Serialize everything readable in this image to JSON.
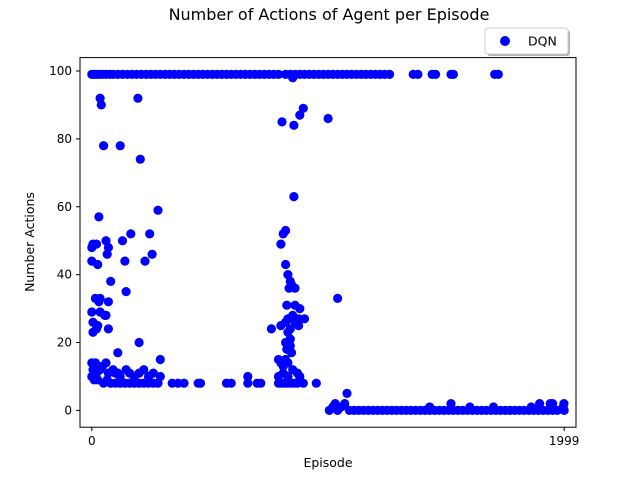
{
  "chart_data": {
    "type": "scatter",
    "title": "Number of Actions of Agent per Episode",
    "xlabel": "Episode",
    "ylabel": "Number Actions",
    "xlim": [
      -50,
      2049
    ],
    "ylim": [
      -4.95,
      103.95
    ],
    "xticks": [
      0,
      1999
    ],
    "xtick_labels": [
      "0",
      "1999"
    ],
    "yticks": [
      0,
      20,
      40,
      60,
      80,
      100
    ],
    "ytick_labels": [
      "0",
      "20",
      "40",
      "60",
      "80",
      "100"
    ],
    "grid": false,
    "legend": {
      "placement": "top-right, above plot",
      "entries": [
        {
          "label": "DQN",
          "color": "#0000ff",
          "marker": "circle"
        }
      ]
    },
    "series": [
      {
        "name": "DQN",
        "color": "#0000ff",
        "marker": "circle",
        "points": [
          [
            0,
            99
          ],
          [
            10,
            99
          ],
          [
            20,
            99
          ],
          [
            30,
            99
          ],
          [
            45,
            99
          ],
          [
            60,
            99
          ],
          [
            75,
            99
          ],
          [
            90,
            99
          ],
          [
            110,
            99
          ],
          [
            130,
            99
          ],
          [
            150,
            99
          ],
          [
            170,
            99
          ],
          [
            190,
            99
          ],
          [
            210,
            99
          ],
          [
            230,
            99
          ],
          [
            250,
            99
          ],
          [
            270,
            99
          ],
          [
            290,
            99
          ],
          [
            310,
            99
          ],
          [
            330,
            99
          ],
          [
            350,
            99
          ],
          [
            370,
            99
          ],
          [
            390,
            99
          ],
          [
            410,
            99
          ],
          [
            430,
            99
          ],
          [
            450,
            99
          ],
          [
            470,
            99
          ],
          [
            490,
            99
          ],
          [
            510,
            99
          ],
          [
            530,
            99
          ],
          [
            550,
            99
          ],
          [
            570,
            99
          ],
          [
            590,
            99
          ],
          [
            610,
            99
          ],
          [
            630,
            99
          ],
          [
            650,
            99
          ],
          [
            670,
            99
          ],
          [
            690,
            99
          ],
          [
            710,
            99
          ],
          [
            730,
            99
          ],
          [
            750,
            99
          ],
          [
            770,
            99
          ],
          [
            790,
            99
          ],
          [
            820,
            99
          ],
          [
            840,
            99
          ],
          [
            860,
            99
          ],
          [
            880,
            99
          ],
          [
            900,
            99
          ],
          [
            920,
            99
          ],
          [
            940,
            99
          ],
          [
            960,
            99
          ],
          [
            980,
            99
          ],
          [
            1000,
            99
          ],
          [
            1020,
            99
          ],
          [
            1040,
            99
          ],
          [
            1060,
            99
          ],
          [
            1080,
            99
          ],
          [
            1100,
            99
          ],
          [
            1120,
            99
          ],
          [
            1140,
            99
          ],
          [
            1160,
            99
          ],
          [
            1180,
            99
          ],
          [
            1200,
            99
          ],
          [
            1220,
            99
          ],
          [
            1240,
            99
          ],
          [
            1260,
            99
          ],
          [
            1360,
            99
          ],
          [
            1380,
            99
          ],
          [
            1440,
            99
          ],
          [
            1455,
            99
          ],
          [
            1520,
            99
          ],
          [
            1530,
            99
          ],
          [
            1705,
            99
          ],
          [
            1720,
            99
          ],
          [
            850,
            98
          ],
          [
            35,
            92
          ],
          [
            195,
            92
          ],
          [
            40,
            90
          ],
          [
            895,
            89
          ],
          [
            880,
            87
          ],
          [
            805,
            85
          ],
          [
            1000,
            86
          ],
          [
            855,
            84
          ],
          [
            50,
            78
          ],
          [
            120,
            78
          ],
          [
            205,
            74
          ],
          [
            855,
            63
          ],
          [
            5,
            49
          ],
          [
            20,
            49
          ],
          [
            60,
            50
          ],
          [
            0,
            48
          ],
          [
            70,
            48
          ],
          [
            65,
            46
          ],
          [
            800,
            49
          ],
          [
            280,
            59
          ],
          [
            165,
            52
          ],
          [
            245,
            52
          ],
          [
            810,
            52
          ],
          [
            820,
            53
          ],
          [
            130,
            50
          ],
          [
            0,
            44
          ],
          [
            25,
            43
          ],
          [
            140,
            44
          ],
          [
            255,
            46
          ],
          [
            225,
            44
          ],
          [
            820,
            43
          ],
          [
            30,
            57
          ],
          [
            830,
            40
          ],
          [
            840,
            38
          ],
          [
            835,
            36
          ],
          [
            845,
            37
          ],
          [
            860,
            36
          ],
          [
            80,
            38
          ],
          [
            15,
            33
          ],
          [
            35,
            33
          ],
          [
            70,
            32
          ],
          [
            145,
            35
          ],
          [
            30,
            32
          ],
          [
            1040,
            33
          ],
          [
            0,
            29
          ],
          [
            35,
            29
          ],
          [
            55,
            28
          ],
          [
            60,
            28
          ],
          [
            5,
            26
          ],
          [
            25,
            25
          ],
          [
            70,
            24
          ],
          [
            800,
            25
          ],
          [
            760,
            24
          ],
          [
            820,
            26
          ],
          [
            830,
            27
          ],
          [
            840,
            24
          ],
          [
            850,
            28
          ],
          [
            860,
            26
          ],
          [
            875,
            27
          ],
          [
            900,
            27
          ],
          [
            875,
            25
          ],
          [
            880,
            30
          ],
          [
            860,
            31
          ],
          [
            825,
            31
          ],
          [
            830,
            23
          ],
          [
            840,
            21
          ],
          [
            5,
            23
          ],
          [
            20,
            24
          ],
          [
            200,
            20
          ],
          [
            820,
            20
          ],
          [
            825,
            18
          ],
          [
            840,
            19
          ],
          [
            845,
            17
          ],
          [
            110,
            17
          ],
          [
            820,
            15
          ],
          [
            830,
            14
          ],
          [
            800,
            14
          ],
          [
            790,
            15
          ],
          [
            810,
            13
          ],
          [
            0,
            14
          ],
          [
            15,
            14
          ],
          [
            30,
            13
          ],
          [
            45,
            13
          ],
          [
            60,
            14
          ],
          [
            5,
            12
          ],
          [
            20,
            11
          ],
          [
            35,
            12
          ],
          [
            70,
            11
          ],
          [
            90,
            12
          ],
          [
            100,
            11
          ],
          [
            110,
            11
          ],
          [
            120,
            10
          ],
          [
            145,
            12
          ],
          [
            160,
            11
          ],
          [
            180,
            10
          ],
          [
            200,
            11
          ],
          [
            220,
            12
          ],
          [
            240,
            10
          ],
          [
            260,
            11
          ],
          [
            290,
            10
          ],
          [
            660,
            10
          ],
          [
            790,
            10
          ],
          [
            810,
            11
          ],
          [
            830,
            10
          ],
          [
            850,
            12
          ],
          [
            870,
            11
          ],
          [
            880,
            10
          ],
          [
            0,
            10
          ],
          [
            10,
            9
          ],
          [
            25,
            9
          ],
          [
            50,
            8
          ],
          [
            65,
            9
          ],
          [
            80,
            8
          ],
          [
            100,
            8
          ],
          [
            120,
            8
          ],
          [
            140,
            8
          ],
          [
            160,
            8
          ],
          [
            180,
            8
          ],
          [
            200,
            8
          ],
          [
            220,
            8
          ],
          [
            240,
            8
          ],
          [
            260,
            8
          ],
          [
            280,
            8
          ],
          [
            340,
            8
          ],
          [
            450,
            8
          ],
          [
            460,
            8
          ],
          [
            570,
            8
          ],
          [
            590,
            8
          ],
          [
            660,
            8
          ],
          [
            700,
            8
          ],
          [
            715,
            8
          ],
          [
            790,
            8
          ],
          [
            800,
            8
          ],
          [
            815,
            8
          ],
          [
            830,
            8
          ],
          [
            845,
            8
          ],
          [
            860,
            8
          ],
          [
            870,
            8
          ],
          [
            895,
            8
          ],
          [
            950,
            8
          ],
          [
            365,
            8
          ],
          [
            390,
            8
          ],
          [
            290,
            15
          ],
          [
            1005,
            0
          ],
          [
            1020,
            1
          ],
          [
            1030,
            2
          ],
          [
            1040,
            0
          ],
          [
            1055,
            1
          ],
          [
            1070,
            2
          ],
          [
            1080,
            5
          ],
          [
            1090,
            0
          ],
          [
            1110,
            0
          ],
          [
            1130,
            0
          ],
          [
            1150,
            0
          ],
          [
            1170,
            0
          ],
          [
            1190,
            0
          ],
          [
            1210,
            0
          ],
          [
            1230,
            0
          ],
          [
            1250,
            0
          ],
          [
            1270,
            0
          ],
          [
            1290,
            0
          ],
          [
            1310,
            0
          ],
          [
            1330,
            0
          ],
          [
            1350,
            0
          ],
          [
            1370,
            0
          ],
          [
            1390,
            0
          ],
          [
            1410,
            0
          ],
          [
            1430,
            0
          ],
          [
            1450,
            0
          ],
          [
            1470,
            0
          ],
          [
            1490,
            0
          ],
          [
            1510,
            0
          ],
          [
            1530,
            0
          ],
          [
            1550,
            0
          ],
          [
            1570,
            0
          ],
          [
            1590,
            0
          ],
          [
            1610,
            0
          ],
          [
            1630,
            0
          ],
          [
            1650,
            0
          ],
          [
            1670,
            0
          ],
          [
            1690,
            0
          ],
          [
            1710,
            0
          ],
          [
            1730,
            0
          ],
          [
            1750,
            0
          ],
          [
            1770,
            0
          ],
          [
            1790,
            0
          ],
          [
            1810,
            0
          ],
          [
            1830,
            0
          ],
          [
            1850,
            0
          ],
          [
            1870,
            0
          ],
          [
            1890,
            0
          ],
          [
            1910,
            0
          ],
          [
            1930,
            0
          ],
          [
            1950,
            0
          ],
          [
            1970,
            0
          ],
          [
            1999,
            0
          ],
          [
            1520,
            2
          ],
          [
            1430,
            1
          ],
          [
            1860,
            1
          ],
          [
            1895,
            2
          ],
          [
            1940,
            2
          ],
          [
            1950,
            2
          ],
          [
            1995,
            1
          ],
          [
            1998,
            2
          ],
          [
            1700,
            1
          ],
          [
            1600,
            1
          ]
        ]
      }
    ]
  }
}
